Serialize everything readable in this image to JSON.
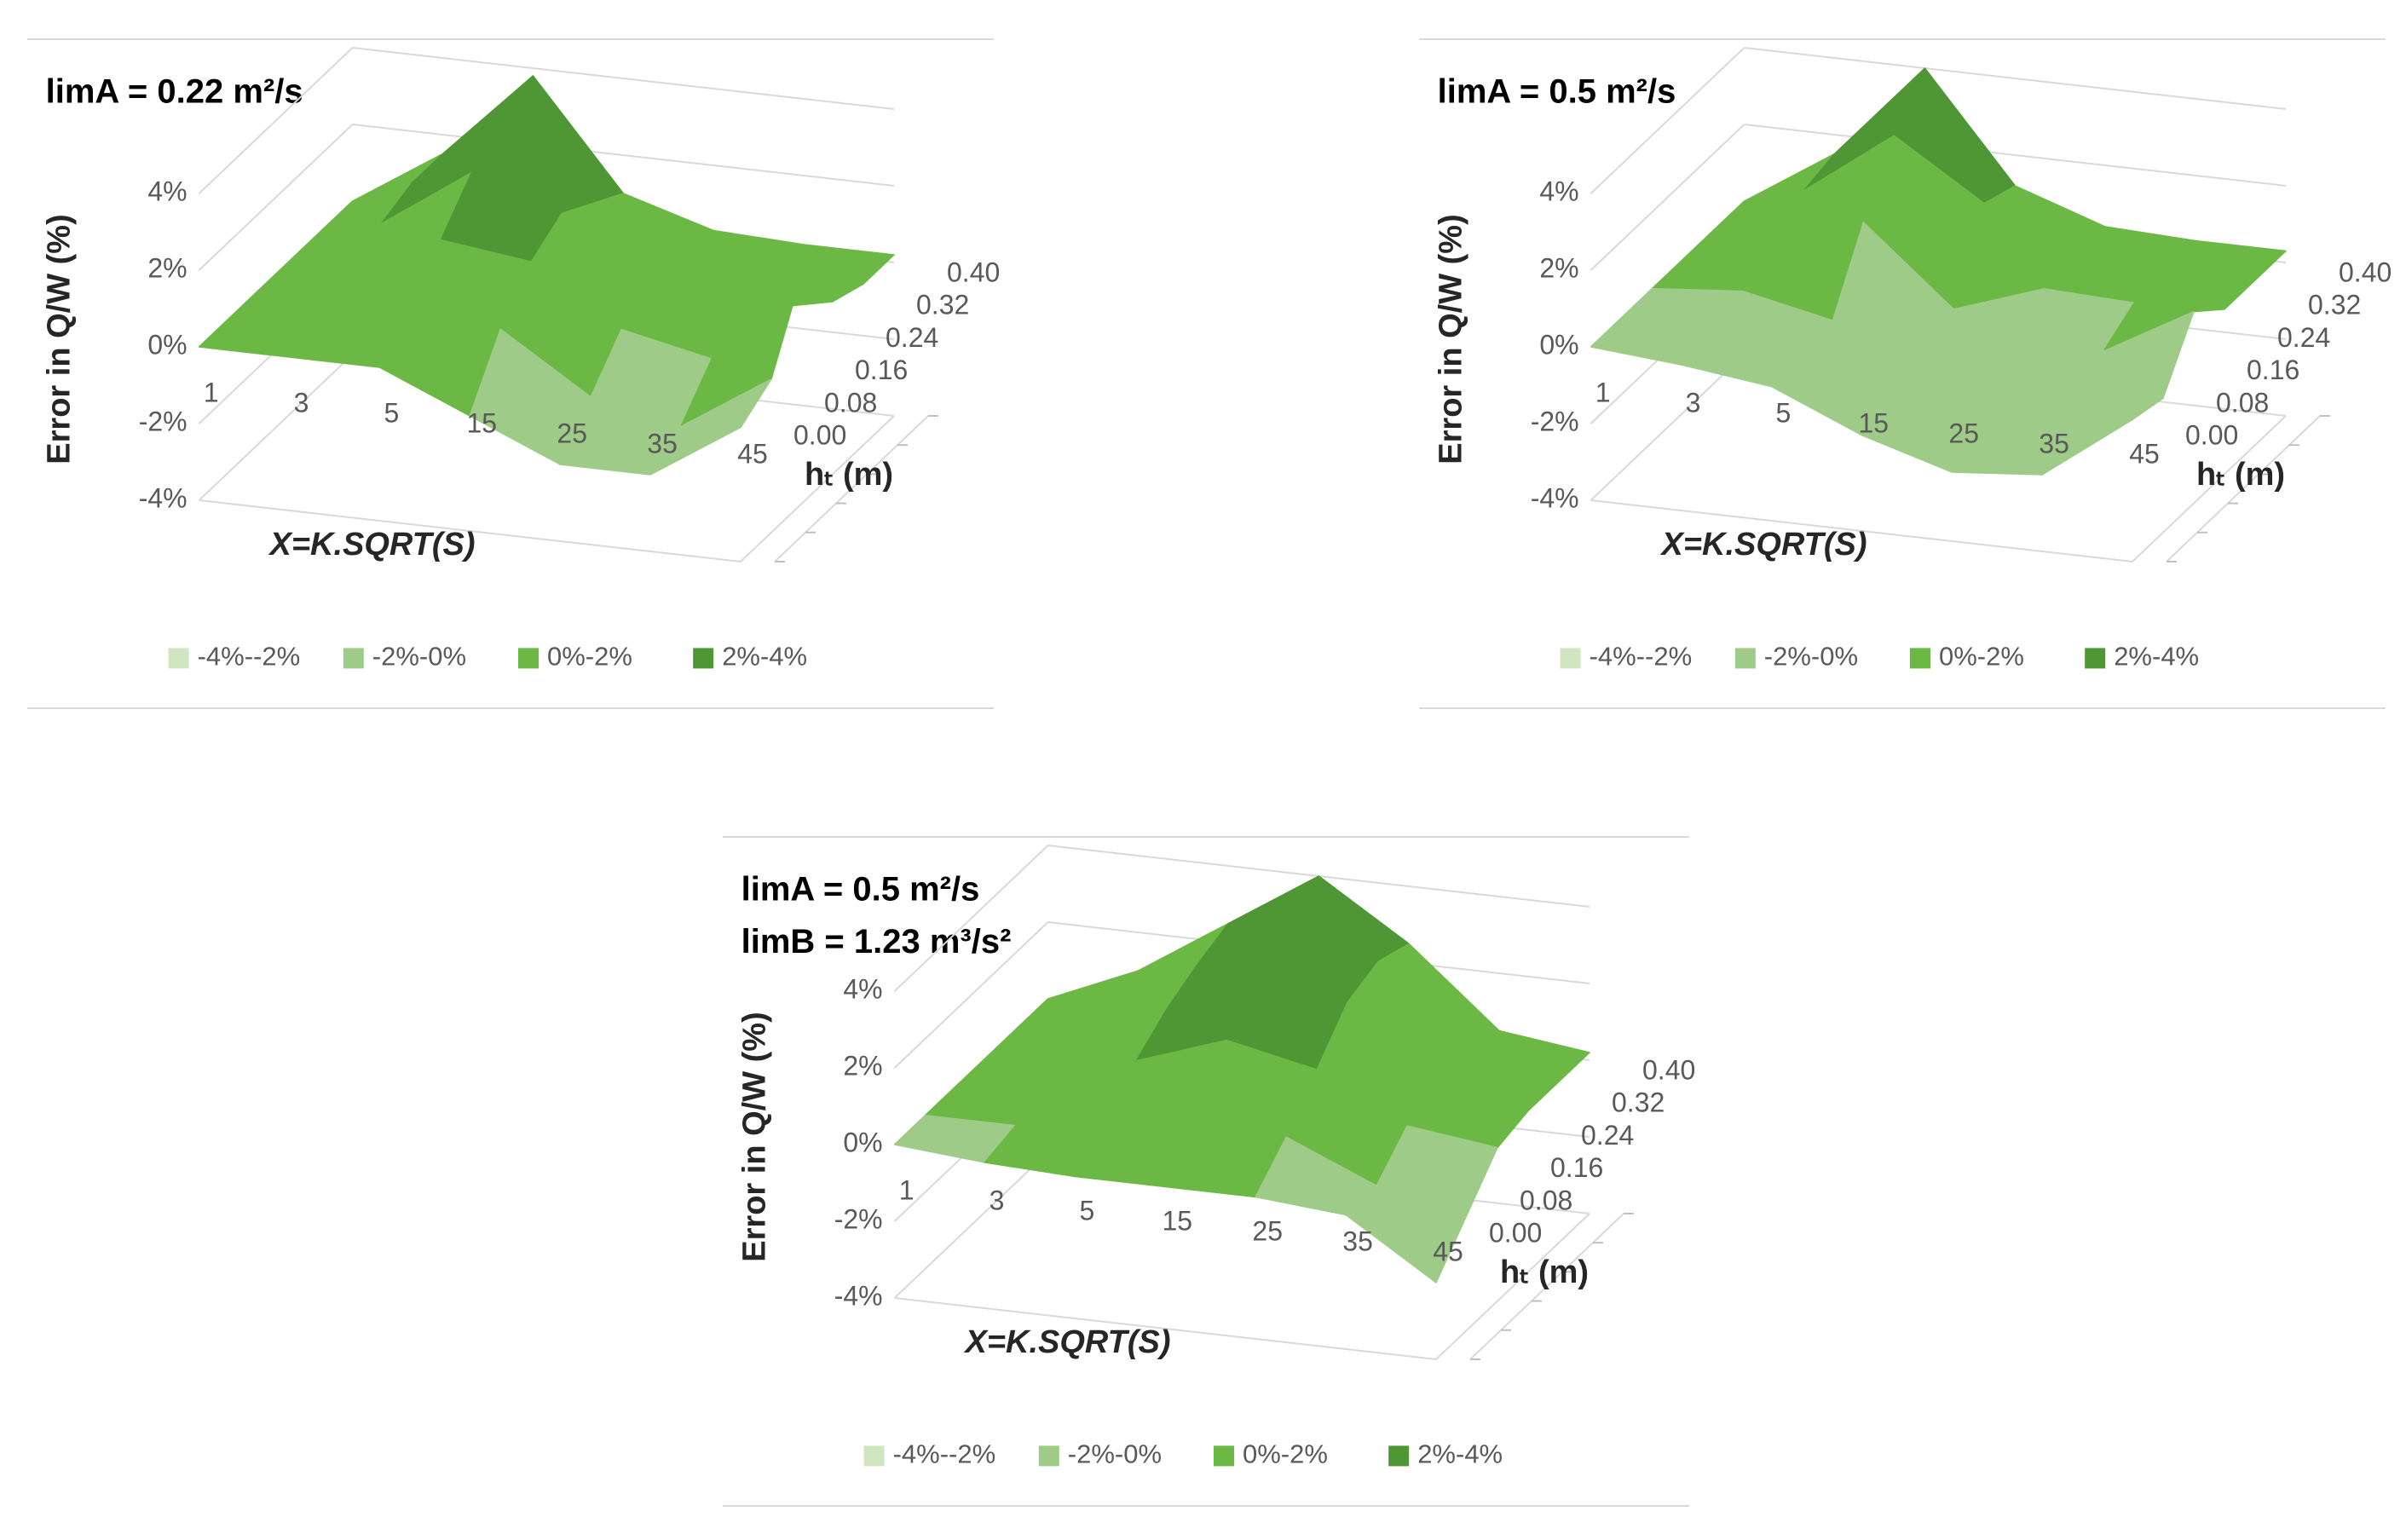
{
  "chart_data": [
    {
      "type": "surface",
      "title": [
        "limA = 0.22 m²/s"
      ],
      "zlabel": "Error in Q/W (%)",
      "xlabel": "X=K.SQRT(S)",
      "ylabel": "hₜ (m)",
      "categories": [
        "1",
        "3",
        "5",
        "15",
        "25",
        "35",
        "45"
      ],
      "ylim": [
        0,
        0.4
      ],
      "yticks": [
        {
          "value": 0,
          "label": "0.00"
        },
        {
          "value": 0.08,
          "label": "0.08"
        },
        {
          "value": 0.16,
          "label": "0.16"
        },
        {
          "value": 0.24,
          "label": "0.24"
        },
        {
          "value": 0.32,
          "label": "0.32"
        },
        {
          "value": 0.4,
          "label": "0.40"
        }
      ],
      "zlim": [
        -4,
        4
      ],
      "zticks": [
        {
          "value": -4,
          "label": "-4%"
        },
        {
          "value": -2,
          "label": "-2%"
        },
        {
          "value": 0,
          "label": "0%"
        },
        {
          "value": 2,
          "label": "2%"
        },
        {
          "value": 4,
          "label": "4%"
        }
      ],
      "values": [
        [
          0,
          0,
          0,
          -1,
          -2,
          -2,
          -0.5
        ],
        [
          0,
          0.3,
          0.8,
          0.5,
          -1,
          -1.5,
          0
        ],
        [
          0,
          0.8,
          1.8,
          1.5,
          0,
          -0.5,
          2
        ],
        [
          0,
          1.2,
          2.8,
          2,
          0.5,
          0,
          0.5
        ],
        [
          0,
          1.5,
          3.5,
          1.5,
          0.5,
          0.2,
          0.2
        ],
        [
          0,
          1.5,
          3.8,
          1,
          0.3,
          0.2,
          0.2
        ]
      ],
      "series": [
        {
          "name": "-4%--2%",
          "color": "#cfe6c1"
        },
        {
          "name": "-2%-0%",
          "color": "#9fcb88"
        },
        {
          "name": "0%-2%",
          "color": "#6cb845"
        },
        {
          "name": "2%-4%",
          "color": "#4f9634"
        }
      ]
    },
    {
      "type": "surface",
      "title": [
        "limA = 0.5 m²/s"
      ],
      "zlabel": "Error in Q/W (%)",
      "xlabel": "X=K.SQRT(S)",
      "ylabel": "hₜ (m)",
      "categories": [
        "1",
        "3",
        "5",
        "15",
        "25",
        "35",
        "45"
      ],
      "ylim": [
        0,
        0.4
      ],
      "yticks": [
        {
          "value": 0,
          "label": "0.00"
        },
        {
          "value": 0.08,
          "label": "0.08"
        },
        {
          "value": 0.16,
          "label": "0.16"
        },
        {
          "value": 0.24,
          "label": "0.24"
        },
        {
          "value": 0.32,
          "label": "0.32"
        },
        {
          "value": 0.4,
          "label": "0.40"
        }
      ],
      "zlim": [
        -4,
        4
      ],
      "zticks": [
        {
          "value": -4,
          "label": "-4%"
        },
        {
          "value": -2,
          "label": "-2%"
        },
        {
          "value": 0,
          "label": "0%"
        },
        {
          "value": 2,
          "label": "2%"
        },
        {
          "value": 4,
          "label": "4%"
        }
      ],
      "values": [
        [
          0,
          -0.2,
          -0.5,
          -1.5,
          -2.2,
          -2,
          -0.3
        ],
        [
          0,
          -0.3,
          -0.5,
          -1,
          -1.5,
          -1.2,
          -0.5
        ],
        [
          0,
          0.2,
          -0.3,
          -1,
          -0.5,
          -0.3,
          1
        ],
        [
          0,
          0.8,
          1.5,
          -0.5,
          0.3,
          0.2,
          0.3
        ],
        [
          0,
          1.3,
          3,
          1.5,
          0.5,
          0.3,
          0.3
        ],
        [
          0,
          1.5,
          4,
          1.2,
          0.4,
          0.3,
          0.3
        ]
      ],
      "series": [
        {
          "name": "-4%--2%",
          "color": "#cfe6c1"
        },
        {
          "name": "-2%-0%",
          "color": "#9fcb88"
        },
        {
          "name": "0%-2%",
          "color": "#6cb845"
        },
        {
          "name": "2%-4%",
          "color": "#4f9634"
        }
      ]
    },
    {
      "type": "surface",
      "title": [
        "limA = 0.5 m²/s",
        "limB = 1.23 m³/s²"
      ],
      "zlabel": "Error in Q/W (%)",
      "xlabel": "X=K.SQRT(S)",
      "ylabel": "hₜ (m)",
      "categories": [
        "1",
        "3",
        "5",
        "15",
        "25",
        "35",
        "45"
      ],
      "ylim": [
        0,
        0.4
      ],
      "yticks": [
        {
          "value": 0,
          "label": "0.00"
        },
        {
          "value": 0.08,
          "label": "0.08"
        },
        {
          "value": 0.16,
          "label": "0.16"
        },
        {
          "value": 0.24,
          "label": "0.24"
        },
        {
          "value": 0.32,
          "label": "0.32"
        },
        {
          "value": 0.4,
          "label": "0.40"
        }
      ],
      "zlim": [
        -4,
        4
      ],
      "zticks": [
        {
          "value": -4,
          "label": "-4%"
        },
        {
          "value": -2,
          "label": "-2%"
        },
        {
          "value": 0,
          "label": "0%"
        },
        {
          "value": 2,
          "label": "2%"
        },
        {
          "value": 4,
          "label": "4%"
        }
      ],
      "values": [
        [
          0,
          -0.2,
          -0.3,
          -0.3,
          -0.3,
          -0.5,
          -2
        ],
        [
          0,
          0,
          0.5,
          0.8,
          0.5,
          -0.5,
          -1
        ],
        [
          0,
          0.3,
          1.2,
          2,
          1.5,
          0.3,
          0
        ],
        [
          0,
          0.6,
          1.8,
          3,
          2.5,
          0.5,
          0.2
        ],
        [
          0,
          0.8,
          2.2,
          3.5,
          2.8,
          0.6,
          0.2
        ],
        [
          0,
          1,
          2.5,
          4,
          2.5,
          0.5,
          0.2
        ]
      ],
      "series": [
        {
          "name": "-4%--2%",
          "color": "#cfe6c1"
        },
        {
          "name": "-2%-0%",
          "color": "#9fcb88"
        },
        {
          "name": "0%-2%",
          "color": "#6cb845"
        },
        {
          "name": "2%-4%",
          "color": "#4f9634"
        }
      ]
    }
  ]
}
